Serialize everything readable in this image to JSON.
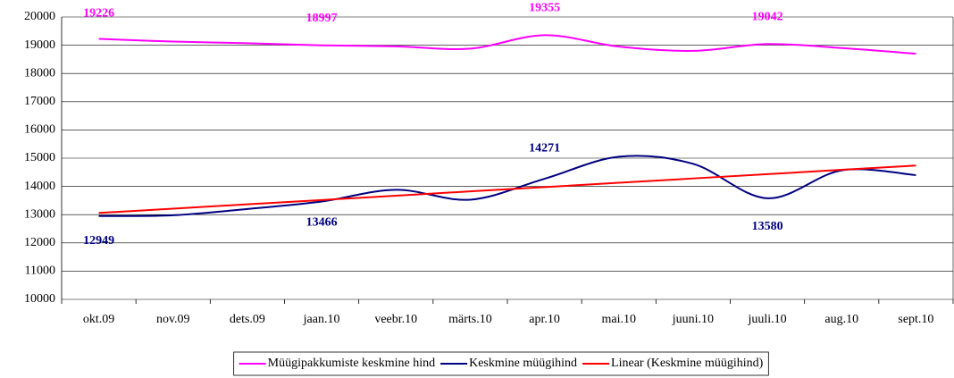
{
  "chart_data": {
    "type": "line",
    "categories": [
      "okt.09",
      "nov.09",
      "dets.09",
      "jaan.10",
      "veebr.10",
      "märts.10",
      "apr.10",
      "mai.10",
      "juuni.10",
      "juuli.10",
      "aug.10",
      "sept.10"
    ],
    "series": [
      {
        "name": "Müügipakkumiste keskmine hind",
        "color": "#ff00ff",
        "smooth": true,
        "values": [
          19226,
          19130,
          19070,
          18997,
          18960,
          18880,
          19355,
          18950,
          18800,
          19042,
          18900,
          18700
        ],
        "value_labels": [
          "19226",
          null,
          null,
          "18997",
          null,
          null,
          "19355",
          null,
          null,
          "19042",
          null,
          null
        ]
      },
      {
        "name": "Keskmine müügihind",
        "color": "#000080",
        "smooth": true,
        "values": [
          12949,
          12980,
          13200,
          13466,
          13880,
          13530,
          14271,
          15050,
          14800,
          13580,
          14570,
          14400
        ],
        "value_labels": [
          "12949",
          null,
          null,
          "13466",
          null,
          null,
          "14271",
          null,
          null,
          "13580",
          null,
          null
        ]
      },
      {
        "name": "Linear (Keskmine müügihind)",
        "color": "#ff0000",
        "smooth": false,
        "values": [
          13060,
          13213,
          13365,
          13518,
          13671,
          13824,
          13976,
          14129,
          14282,
          14435,
          14587,
          14740
        ]
      }
    ],
    "ylim": [
      10000,
      20000
    ],
    "yticks": [
      10000,
      11000,
      12000,
      13000,
      14000,
      15000,
      16000,
      17000,
      18000,
      19000,
      20000
    ],
    "grid": true,
    "legend": "bottom"
  }
}
